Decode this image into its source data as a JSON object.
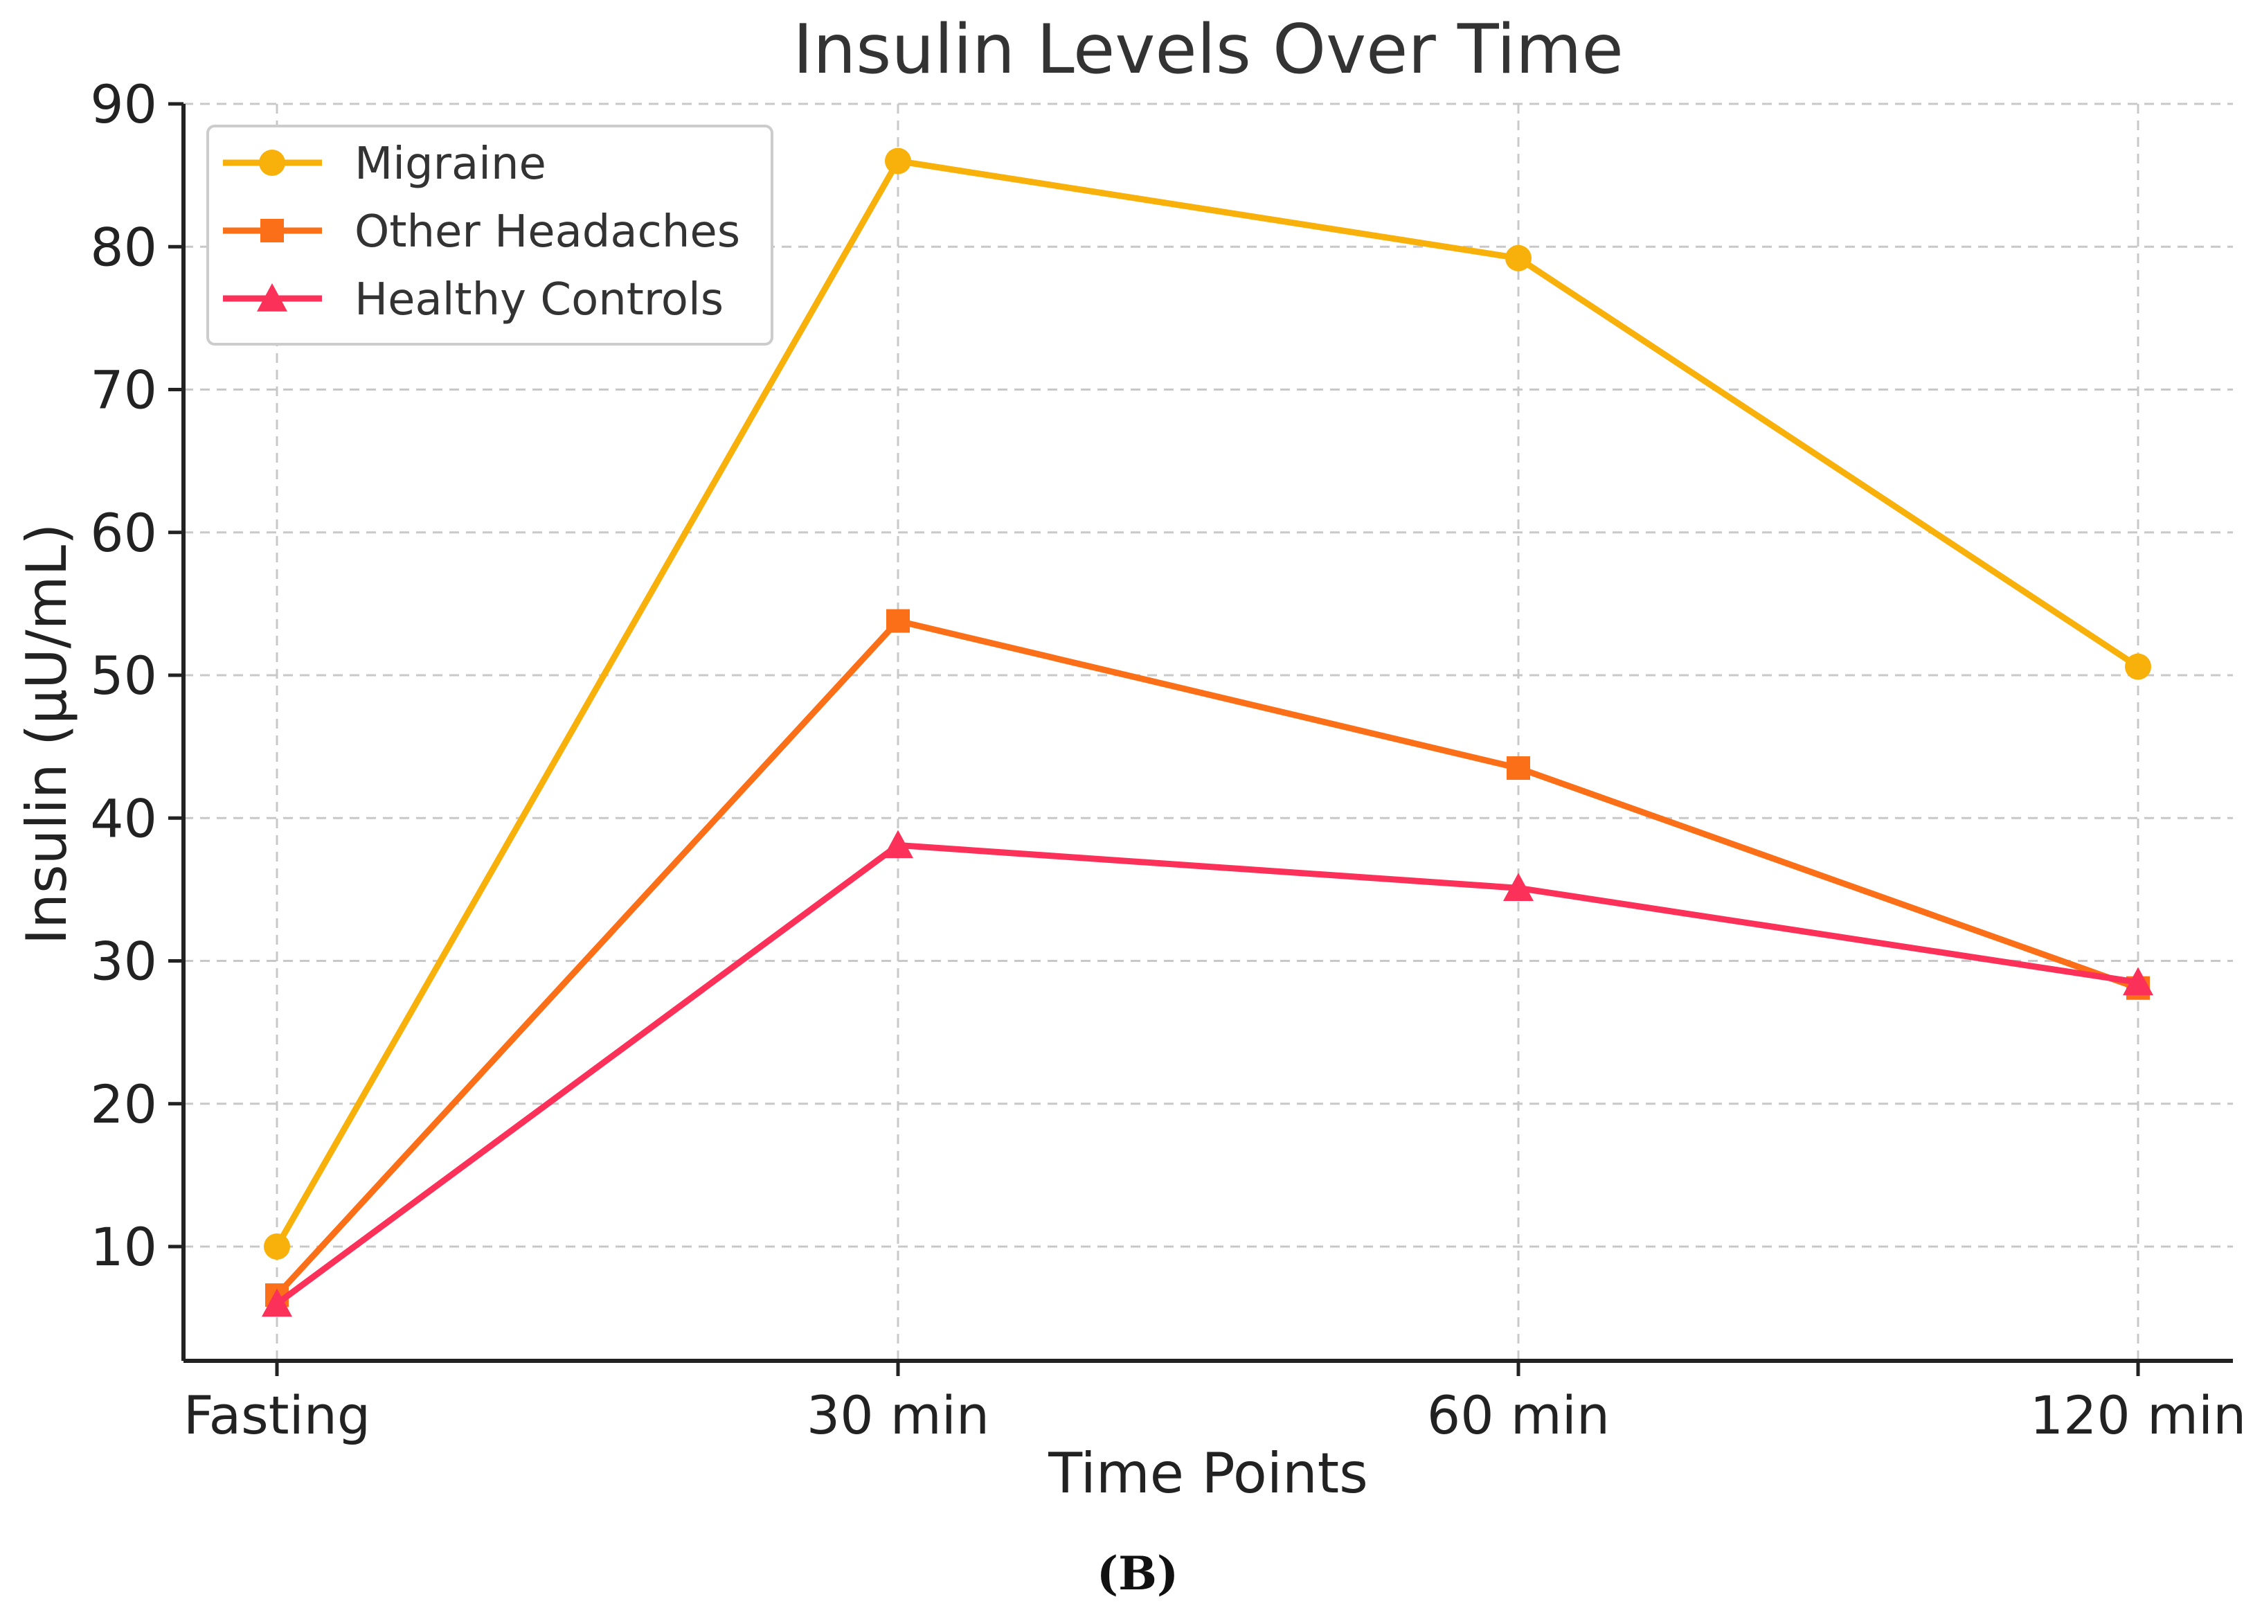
{
  "chart_data": {
    "type": "line",
    "title": "Insulin Levels Over Time",
    "xlabel": "Time Points",
    "ylabel": "Insulin (μU/mL)",
    "categories": [
      "Fasting",
      "30 min",
      "60 min",
      "120 min"
    ],
    "y_ticks": [
      10,
      20,
      30,
      40,
      50,
      60,
      70,
      80,
      90
    ],
    "ylim": [
      2,
      90
    ],
    "grid": true,
    "legend_position": "top-left",
    "series": [
      {
        "name": "Migraine",
        "values": [
          10.0,
          86.0,
          79.2,
          50.6
        ],
        "color": "#F8B00A",
        "marker": "circle"
      },
      {
        "name": "Other Headaches",
        "values": [
          6.6,
          53.8,
          43.5,
          28.1
        ],
        "color": "#FA6F17",
        "marker": "square"
      },
      {
        "name": "Healthy Controls",
        "values": [
          6.0,
          38.1,
          35.1,
          28.5
        ],
        "color": "#FB3159",
        "marker": "triangle"
      }
    ]
  },
  "caption": "(B)"
}
